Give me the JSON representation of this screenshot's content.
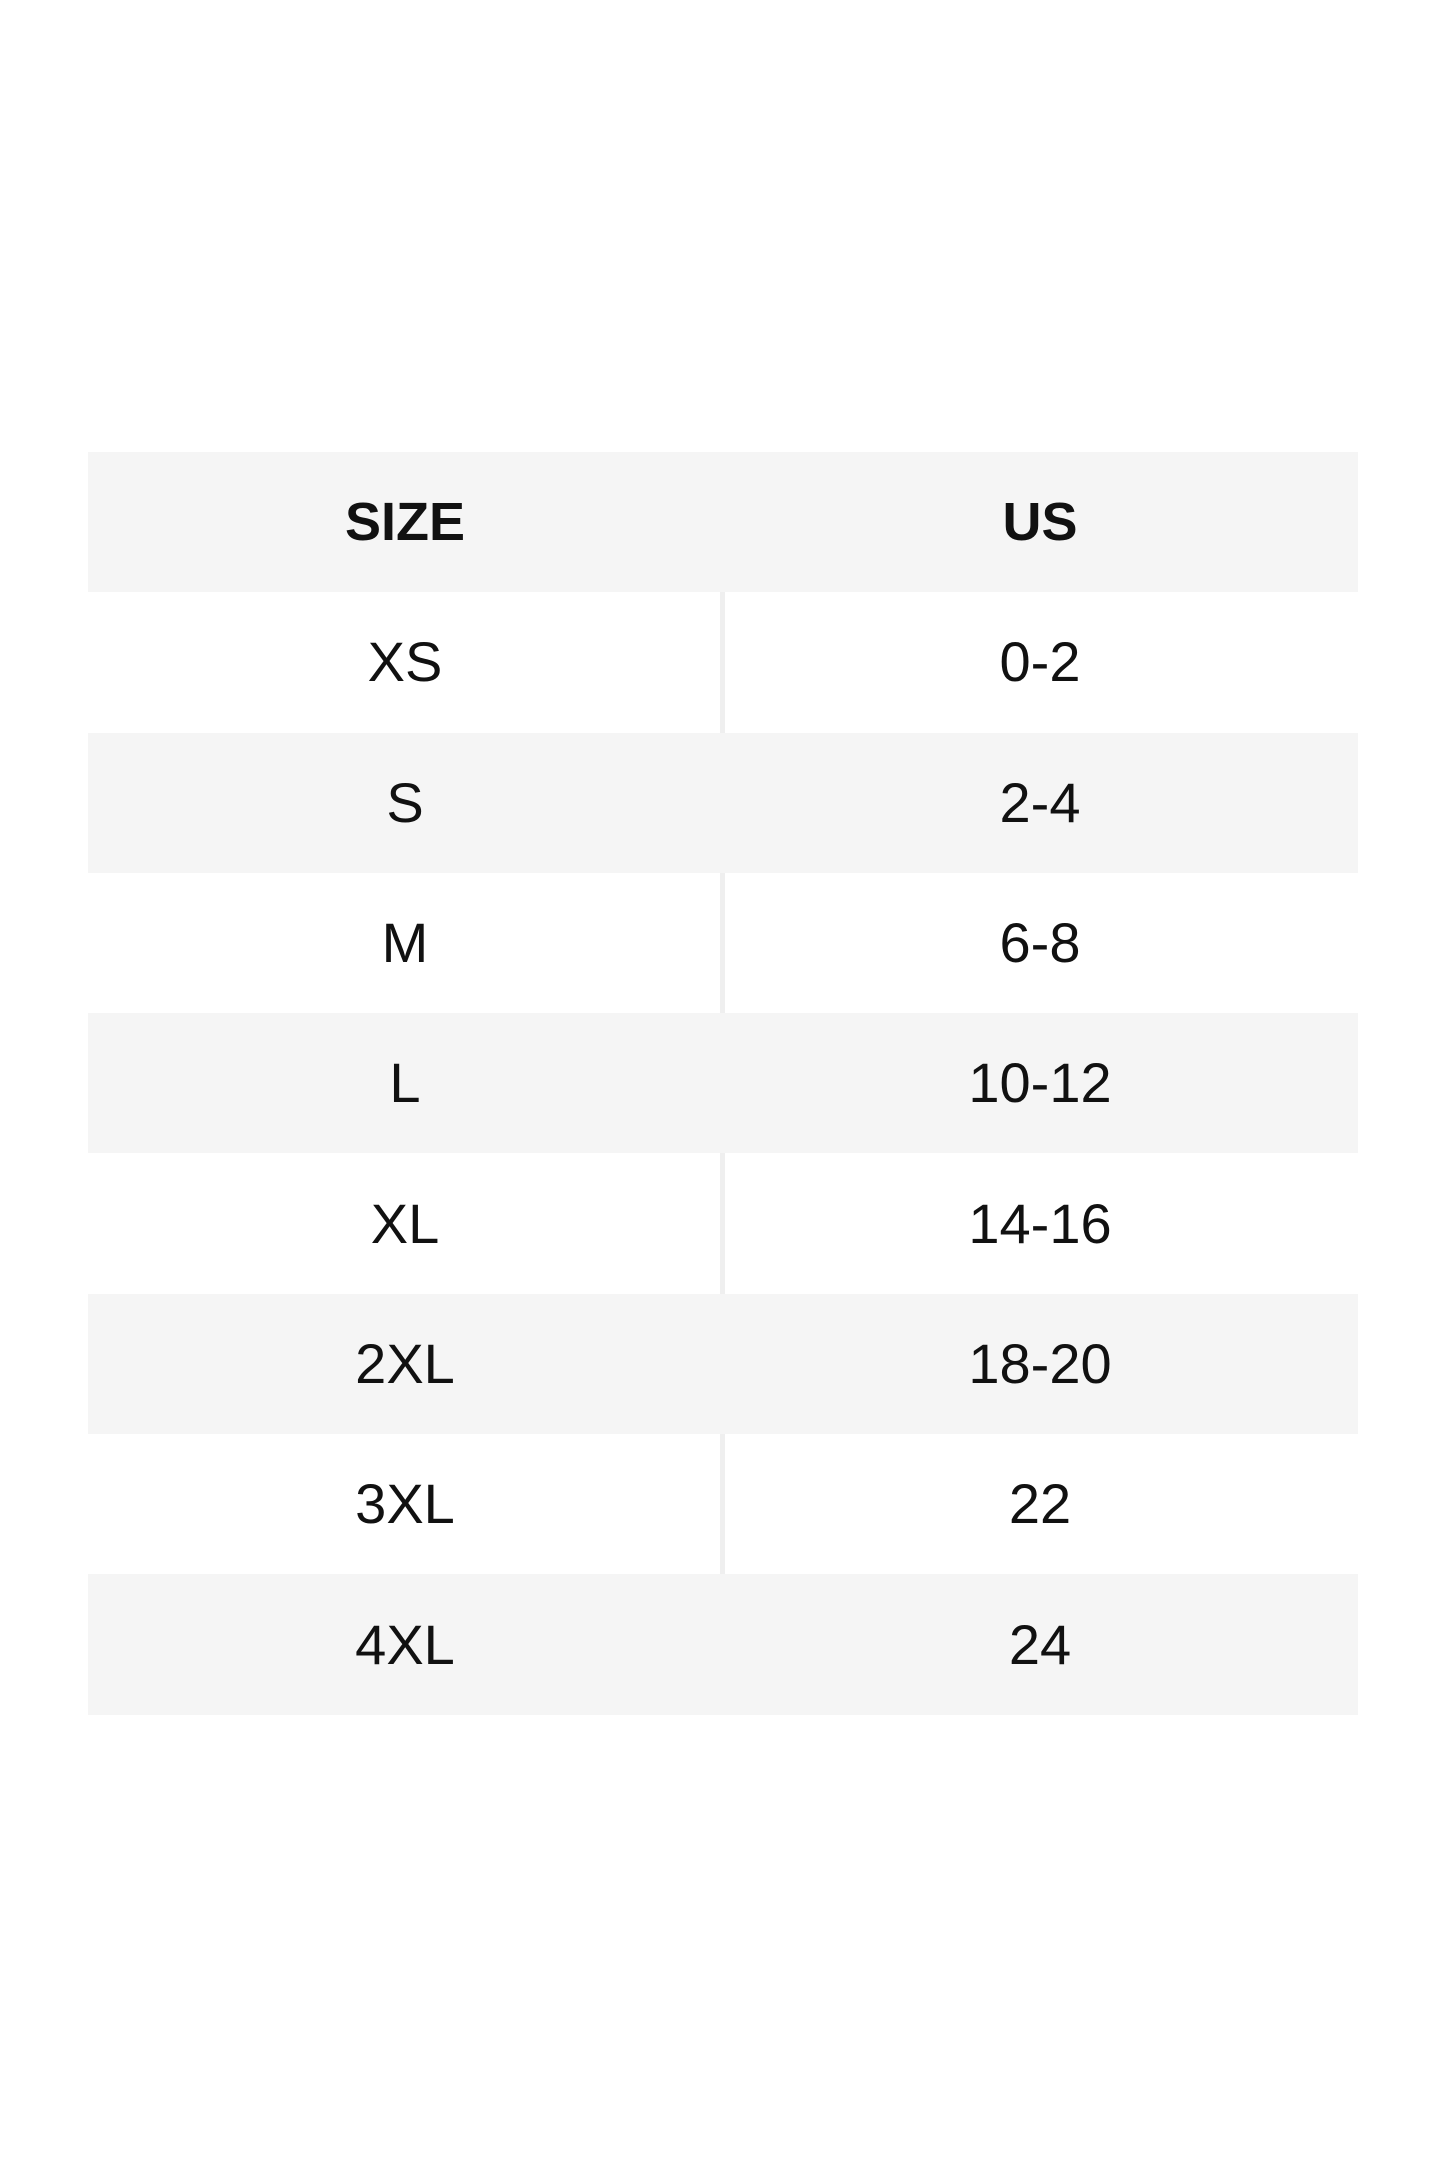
{
  "chart_data": {
    "type": "table",
    "title": "",
    "columns": [
      "SIZE",
      "US"
    ],
    "rows": [
      [
        "XS",
        "0-2"
      ],
      [
        "S",
        "2-4"
      ],
      [
        "M",
        "6-8"
      ],
      [
        "L",
        "10-12"
      ],
      [
        "XL",
        "14-16"
      ],
      [
        "2XL",
        "18-20"
      ],
      [
        "3XL",
        "22"
      ],
      [
        "4XL",
        "24"
      ]
    ],
    "layout": {
      "header_shaded": true,
      "alternating_rows": true,
      "shaded_row_indexes": [
        1,
        3,
        5,
        7
      ],
      "divider_on_white_rows_only": true
    }
  },
  "colors": {
    "page_background": "#ffffff",
    "row_shaded": "#f5f5f5",
    "divider": "#efefef",
    "text": "#111111"
  }
}
